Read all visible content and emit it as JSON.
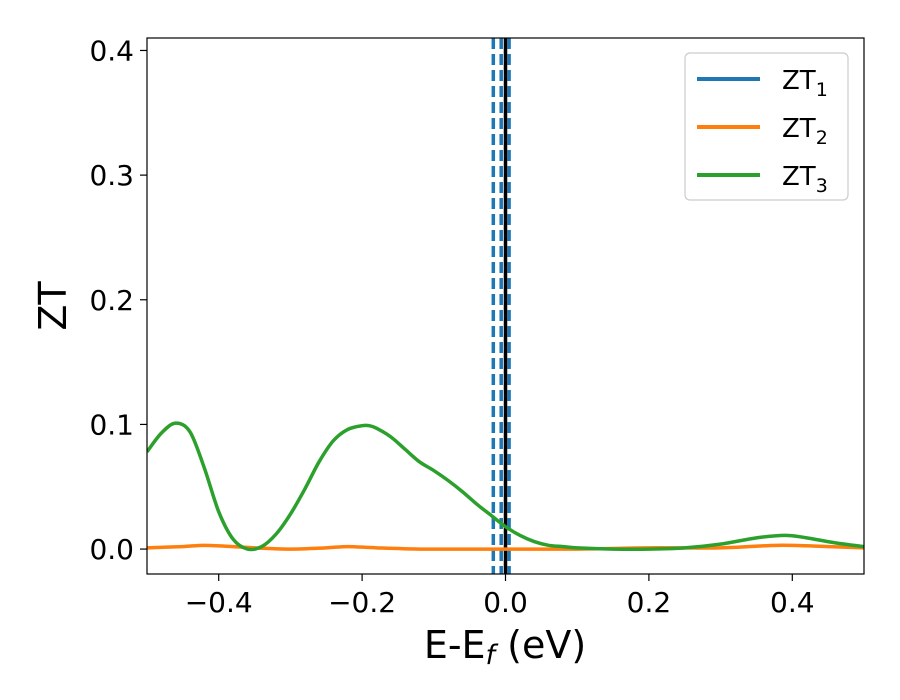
{
  "chart_data": {
    "type": "line",
    "title": "",
    "xlabel": "E-E",
    "xlabel_sub": "f",
    "xlabel_unit": " (eV)",
    "ylabel": "ZT",
    "xlim": [
      -0.5,
      0.5
    ],
    "ylim": [
      -0.02,
      0.41
    ],
    "x_ticks": [
      -0.4,
      -0.2,
      0.0,
      0.2,
      0.4
    ],
    "x_tick_labels": [
      "−0.4",
      "−0.2",
      "0.0",
      "0.2",
      "0.4"
    ],
    "y_ticks": [
      0.0,
      0.1,
      0.2,
      0.3,
      0.4
    ],
    "y_tick_labels": [
      "0.0",
      "0.1",
      "0.2",
      "0.3",
      "0.4"
    ],
    "grid": false,
    "legend_position": "top-right",
    "series": [
      {
        "name": "ZT",
        "name_sub": "1",
        "color": "#1f77b4",
        "x": [],
        "y": []
      },
      {
        "name": "ZT",
        "name_sub": "2",
        "color": "#ff7f0e",
        "x": [
          -0.5,
          -0.45,
          -0.42,
          -0.38,
          -0.35,
          -0.3,
          -0.25,
          -0.22,
          -0.18,
          -0.12,
          -0.05,
          0.0,
          0.1,
          0.2,
          0.3,
          0.38,
          0.45,
          0.5
        ],
        "y": [
          0.001,
          0.002,
          0.003,
          0.002,
          0.001,
          0.0,
          0.001,
          0.002,
          0.001,
          0.0,
          0.0,
          0.0,
          0.0,
          0.001,
          0.001,
          0.003,
          0.002,
          0.001
        ]
      },
      {
        "name": "ZT",
        "name_sub": "3",
        "color": "#2ca02c",
        "x": [
          -0.5,
          -0.48,
          -0.46,
          -0.44,
          -0.42,
          -0.4,
          -0.38,
          -0.36,
          -0.34,
          -0.32,
          -0.3,
          -0.28,
          -0.26,
          -0.24,
          -0.22,
          -0.2,
          -0.19,
          -0.18,
          -0.16,
          -0.14,
          -0.12,
          -0.1,
          -0.08,
          -0.06,
          -0.04,
          -0.02,
          0.0,
          0.02,
          0.04,
          0.06,
          0.08,
          0.1,
          0.15,
          0.2,
          0.25,
          0.3,
          0.35,
          0.39,
          0.42,
          0.46,
          0.5
        ],
        "y": [
          0.078,
          0.093,
          0.101,
          0.094,
          0.065,
          0.03,
          0.008,
          0.0,
          0.002,
          0.012,
          0.028,
          0.048,
          0.07,
          0.087,
          0.096,
          0.099,
          0.099,
          0.097,
          0.09,
          0.08,
          0.07,
          0.063,
          0.055,
          0.046,
          0.036,
          0.027,
          0.018,
          0.011,
          0.006,
          0.003,
          0.002,
          0.001,
          0.0,
          0.0,
          0.001,
          0.004,
          0.009,
          0.011,
          0.009,
          0.005,
          0.002
        ]
      }
    ],
    "vertical_lines": [
      {
        "x": -0.017,
        "style": "dashed",
        "color": "#1f77b4"
      },
      {
        "x": -0.006,
        "style": "dashed",
        "color": "#1f77b4"
      },
      {
        "x": 0.005,
        "style": "dashed",
        "color": "#1f77b4"
      },
      {
        "x": 0.0,
        "style": "solid",
        "color": "#000000"
      }
    ]
  }
}
